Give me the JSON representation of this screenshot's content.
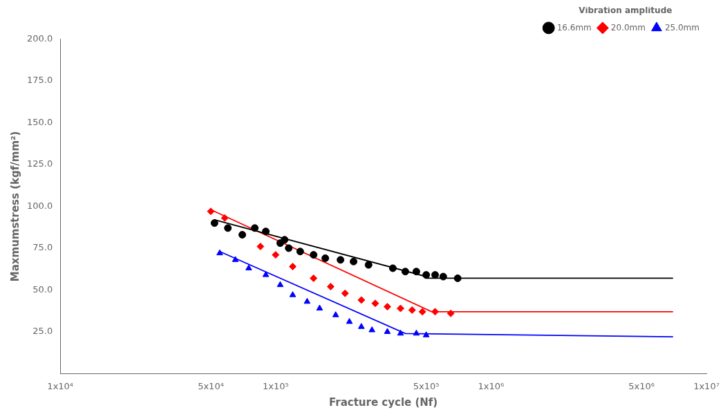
{
  "chart_data": {
    "type": "scatter",
    "xlabel": "Fracture cycle (Nf)",
    "ylabel": "Maxmumstress (kgf/mm²)",
    "log": "x",
    "xlim": [
      10000,
      10000000
    ],
    "ylim": [
      0,
      200
    ],
    "xticks": [
      {
        "value": 10000,
        "label": "1x10⁴"
      },
      {
        "value": 50000,
        "label": "5x10⁴"
      },
      {
        "value": 100000,
        "label": "1x10⁵"
      },
      {
        "value": 500000,
        "label": "5x10⁵"
      },
      {
        "value": 1000000,
        "label": "1x10⁶"
      },
      {
        "value": 5000000,
        "label": "5x10⁶"
      },
      {
        "value": 10000000,
        "label": "1x10⁷"
      }
    ],
    "yticks": [
      {
        "value": 0,
        "label": null
      },
      {
        "value": 25,
        "label": "25.0"
      },
      {
        "value": 50,
        "label": "50.0"
      },
      {
        "value": 75,
        "label": "75.0"
      },
      {
        "value": 100,
        "label": "100.0"
      },
      {
        "value": 125,
        "label": "125.0"
      },
      {
        "value": 150,
        "label": "150.0"
      },
      {
        "value": 175,
        "label": "175.0"
      },
      {
        "value": 200,
        "label": "200.0"
      }
    ],
    "grid": false,
    "legend": "upper right",
    "legend_title": "Vibration amplitude",
    "series": [
      {
        "name": "16.6mm",
        "color": "black",
        "marker": "circle",
        "x": [
          52000,
          60000,
          70000,
          80000,
          90000,
          105000,
          110000,
          115000,
          130000,
          150000,
          170000,
          200000,
          230000,
          270000,
          350000,
          400000,
          450000,
          500000,
          550000,
          600000,
          700000
        ],
        "values": [
          90,
          87,
          83,
          87,
          85,
          78,
          80,
          75,
          73,
          71,
          69,
          68,
          67,
          65,
          63,
          61,
          61,
          59,
          59,
          58,
          57
        ],
        "line": {
          "x": [
            52000,
            500000,
            500000,
            7000000
          ],
          "values": [
            92,
            58,
            57,
            57
          ]
        }
      },
      {
        "name": "20.0mm",
        "color": "red",
        "marker": "diamond",
        "x": [
          50000,
          58000,
          70000,
          85000,
          100000,
          120000,
          150000,
          180000,
          210000,
          250000,
          290000,
          330000,
          380000,
          430000,
          480000,
          550000,
          650000
        ],
        "values": [
          97,
          93,
          83,
          76,
          71,
          64,
          57,
          52,
          48,
          44,
          42,
          40,
          39,
          38,
          37,
          37,
          36
        ],
        "line": {
          "x": [
            50000,
            530000,
            530000,
            7000000
          ],
          "values": [
            98,
            37,
            37,
            37
          ]
        }
      },
      {
        "name": "25.0mm",
        "color": "blue",
        "marker": "triangle",
        "x": [
          55000,
          65000,
          75000,
          90000,
          105000,
          120000,
          140000,
          160000,
          190000,
          220000,
          250000,
          280000,
          330000,
          380000,
          450000,
          500000
        ],
        "values": [
          72,
          68,
          63,
          59,
          53,
          47,
          43,
          39,
          35,
          31,
          28,
          26,
          25,
          24,
          24,
          23
        ],
        "line": {
          "x": [
            55000,
            400000,
            400000,
            7000000
          ],
          "values": [
            73,
            24,
            24,
            22
          ]
        }
      }
    ]
  }
}
